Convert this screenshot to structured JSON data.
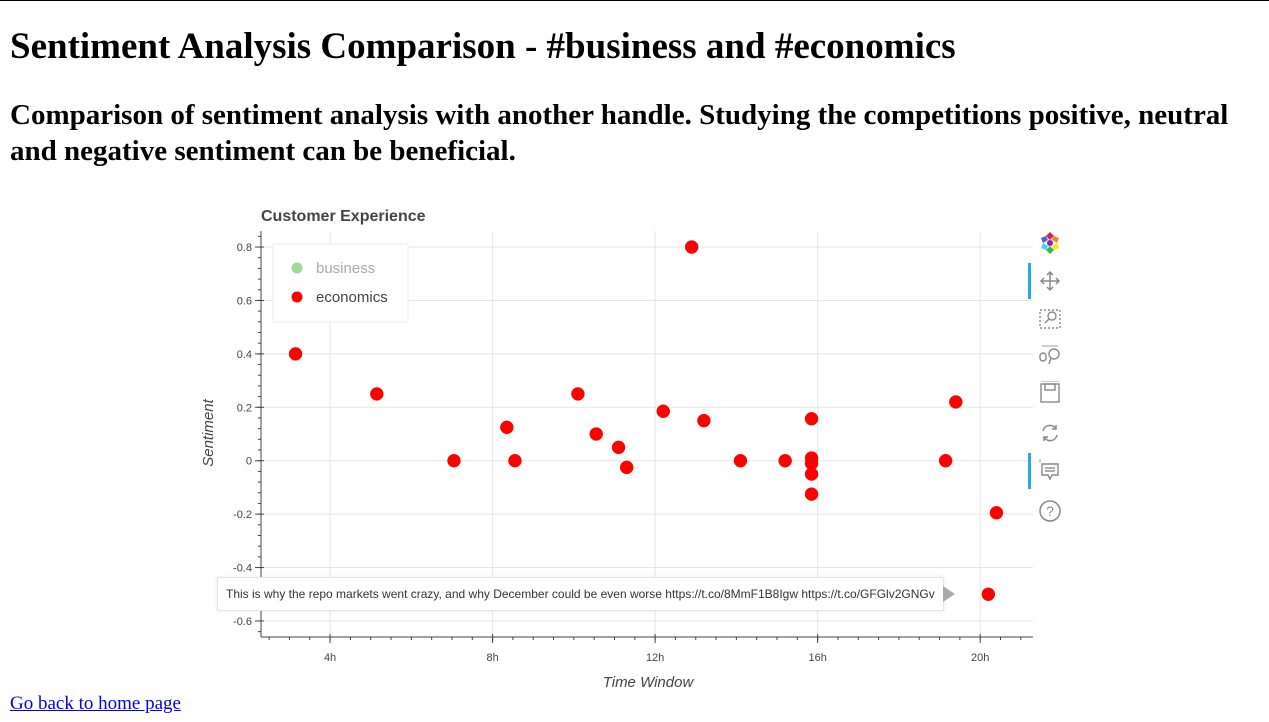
{
  "page": {
    "title": "Sentiment Analysis Comparison - #business and #economics",
    "subtitle": "Comparison of sentiment analysis with another handle. Studying the competitions positive, neutral and negative sentiment can be beneficial.",
    "home_link": "Go back to home page"
  },
  "chart_data": {
    "type": "scatter",
    "title": "Customer Experience",
    "xlabel": "Time Window",
    "ylabel": "Sentiment",
    "xlim": [
      2.3,
      21.3
    ],
    "ylim": [
      -0.66,
      0.86
    ],
    "x_ticks": [
      4,
      8,
      12,
      16,
      20
    ],
    "x_tick_labels": [
      "4h",
      "8h",
      "12h",
      "16h",
      "20h"
    ],
    "y_ticks": [
      0.8,
      0.6,
      0.4,
      0.2,
      0,
      -0.2,
      -0.4,
      -0.6
    ],
    "y_tick_labels": [
      "0.8",
      "0.6",
      "0.4",
      "0.2",
      "0",
      "-0.2",
      "-0.4",
      "-0.6"
    ],
    "grid": true,
    "legend_position": "top-left",
    "series": [
      {
        "name": "business",
        "color": "#a1d99b",
        "muted": true,
        "points": []
      },
      {
        "name": "economics",
        "color": "#ff0000",
        "points": [
          {
            "x": 3.15,
            "y": 0.4
          },
          {
            "x": 5.15,
            "y": 0.25
          },
          {
            "x": 7.05,
            "y": 0.0
          },
          {
            "x": 8.35,
            "y": 0.125
          },
          {
            "x": 8.55,
            "y": 0.0
          },
          {
            "x": 10.1,
            "y": 0.25
          },
          {
            "x": 10.55,
            "y": 0.1
          },
          {
            "x": 11.1,
            "y": 0.05
          },
          {
            "x": 11.3,
            "y": -0.025
          },
          {
            "x": 12.2,
            "y": 0.185
          },
          {
            "x": 12.9,
            "y": 0.8
          },
          {
            "x": 13.2,
            "y": 0.15
          },
          {
            "x": 14.1,
            "y": 0.0
          },
          {
            "x": 15.2,
            "y": 0.0
          },
          {
            "x": 15.85,
            "y": 0.157
          },
          {
            "x": 15.85,
            "y": 0.01
          },
          {
            "x": 15.85,
            "y": -0.01
          },
          {
            "x": 15.85,
            "y": -0.05
          },
          {
            "x": 15.85,
            "y": -0.125
          },
          {
            "x": 19.15,
            "y": 0.0
          },
          {
            "x": 19.4,
            "y": 0.22
          },
          {
            "x": 20.2,
            "y": -0.5
          },
          {
            "x": 20.4,
            "y": -0.195
          }
        ]
      }
    ],
    "tooltip": "This is why the repo markets went crazy, and why December could be even worse https://t.co/8MmF1B8Igw https://t.co/GFGlv2GNGv"
  },
  "toolbar": {
    "tools": [
      {
        "name": "bokeh-logo-icon"
      },
      {
        "name": "pan-tool-icon"
      },
      {
        "name": "box-zoom-tool-icon"
      },
      {
        "name": "wheel-zoom-tool-icon"
      },
      {
        "name": "save-tool-icon"
      },
      {
        "name": "reset-tool-icon"
      },
      {
        "name": "hover-tool-icon"
      },
      {
        "name": "help-tool-icon"
      }
    ]
  }
}
